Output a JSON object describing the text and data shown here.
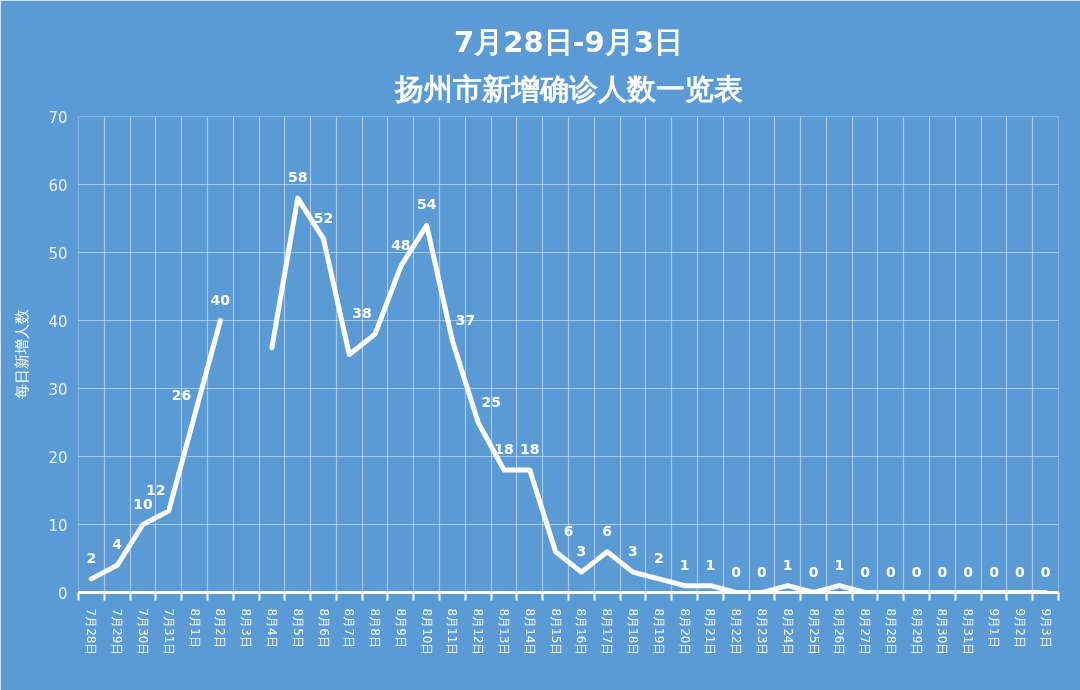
{
  "chart_data": {
    "type": "line",
    "title": "7月28日-9月3日",
    "subtitle": "扬州市新增确诊人数一览表",
    "ylabel": "每日新增人数",
    "categories": [
      "7月28日",
      "7月29日",
      "7月30日",
      "7月31日",
      "8月1日",
      "8月2日",
      "8月3日",
      "8月4日",
      "8月5日",
      "8月6日",
      "8月7日",
      "8月8日",
      "8月9日",
      "8月10日",
      "8月11日",
      "8月12日",
      "8月13日",
      "8月14日",
      "8月15日",
      "8月16日",
      "8月17日",
      "8月18日",
      "8月19日",
      "8月20日",
      "8月21日",
      "8月22日",
      "8月23日",
      "8月24日",
      "8月25日",
      "8月26日",
      "8月27日",
      "8月28日",
      "8月29日",
      "8月30日",
      "8月31日",
      "9月1日",
      "9月2日",
      "9月3日"
    ],
    "values": [
      2,
      4,
      10,
      12,
      26,
      40,
      null,
      36,
      58,
      52,
      35,
      38,
      48,
      54,
      37,
      25,
      18,
      18,
      6,
      3,
      6,
      3,
      2,
      1,
      1,
      0,
      0,
      1,
      0,
      1,
      0,
      0,
      0,
      0,
      0,
      0,
      0,
      0
    ],
    "value_labels": [
      "2",
      "4",
      "10",
      "12",
      "26",
      "40",
      null,
      null,
      "58",
      "52",
      null,
      "38",
      "48",
      "54",
      "37",
      "25",
      "18",
      "18",
      "6",
      "3",
      "6",
      "3",
      "2",
      "1",
      "1",
      "0",
      "0",
      "1",
      "0",
      "1",
      "0",
      "0",
      "0",
      "0",
      "0",
      "0",
      "0",
      "0"
    ],
    "color": "#ffffff",
    "line_style": "solid",
    "ylim": [
      0,
      70
    ],
    "yticks": [
      0,
      10,
      20,
      30,
      40,
      50,
      60,
      70
    ],
    "grid": true
  }
}
